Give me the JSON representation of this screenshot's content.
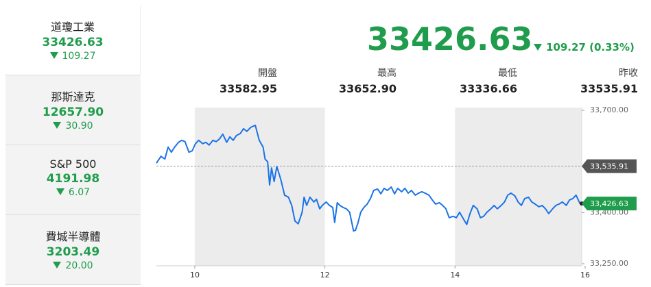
{
  "sidebar": {
    "items": [
      {
        "name": "道瓊工業",
        "value": "33426.63",
        "change": "109.27"
      },
      {
        "name": "那斯達克",
        "value": "12657.90",
        "change": "30.90"
      },
      {
        "name": "S&P 500",
        "value": "4191.98",
        "change": "6.07"
      },
      {
        "name": "費城半導體",
        "value": "3203.49",
        "change": "20.00"
      }
    ]
  },
  "quote": {
    "price": "33426.63",
    "change": "109.27",
    "change_pct": "(0.33%)",
    "stats": [
      {
        "label": "開盤",
        "value": "33582.95"
      },
      {
        "label": "最高",
        "value": "33652.90"
      },
      {
        "label": "最低",
        "value": "33336.66"
      },
      {
        "label": "昨收",
        "value": "33535.91"
      }
    ]
  },
  "chart_data": {
    "type": "line",
    "x": [
      9.41,
      9.48,
      9.54,
      9.59,
      9.64,
      9.69,
      9.75,
      9.8,
      9.85,
      9.91,
      9.96,
      10.01,
      10.06,
      10.12,
      10.17,
      10.22,
      10.28,
      10.33,
      10.38,
      10.43,
      10.49,
      10.54,
      10.59,
      10.64,
      10.7,
      10.75,
      10.8,
      10.86,
      10.93,
      10.99,
      11.05,
      11.08,
      11.12,
      11.15,
      11.18,
      11.22,
      11.26,
      11.3,
      11.33,
      11.38,
      11.44,
      11.49,
      11.54,
      11.59,
      11.65,
      11.68,
      11.72,
      11.77,
      11.83,
      11.87,
      11.92,
      11.96,
      12.02,
      12.07,
      12.12,
      12.15,
      12.19,
      12.23,
      12.28,
      12.33,
      12.38,
      12.44,
      12.47,
      12.51,
      12.55,
      12.6,
      12.65,
      12.7,
      12.75,
      12.81,
      12.86,
      12.91,
      12.96,
      13.02,
      13.07,
      13.12,
      13.18,
      13.23,
      13.28,
      13.33,
      13.39,
      13.44,
      13.49,
      13.54,
      13.6,
      13.65,
      13.7,
      13.76,
      13.81,
      13.86,
      13.91,
      13.97,
      14.02,
      14.07,
      14.13,
      14.18,
      14.23,
      14.28,
      14.34,
      14.39,
      14.44,
      14.49,
      14.55,
      14.6,
      14.65,
      14.71,
      14.76,
      14.81,
      14.86,
      14.92,
      14.97,
      15.02,
      15.07,
      15.13,
      15.18,
      15.23,
      15.29,
      15.34,
      15.39,
      15.44,
      15.5,
      15.55,
      15.6,
      15.65,
      15.71,
      15.76,
      15.81,
      15.86,
      15.92
    ],
    "series": [
      {
        "color": "#1a73e8",
        "values": [
          33545,
          33565,
          33557,
          33592,
          33577,
          33592,
          33606,
          33612,
          33608,
          33577,
          33581,
          33602,
          33612,
          33602,
          33606,
          33598,
          33612,
          33608,
          33616,
          33630,
          33606,
          33622,
          33612,
          33626,
          33632,
          33646,
          33638,
          33650,
          33656,
          33612,
          33592,
          33557,
          33549,
          33481,
          33531,
          33491,
          33535,
          33511,
          33491,
          33451,
          33445,
          33421,
          33375,
          33367,
          33401,
          33445,
          33421,
          33445,
          33431,
          33439,
          33411,
          33421,
          33431,
          33421,
          33415,
          33371,
          33429,
          33421,
          33415,
          33411,
          33401,
          33346,
          33348,
          33371,
          33401,
          33415,
          33425,
          33441,
          33465,
          33469,
          33455,
          33471,
          33465,
          33475,
          33455,
          33471,
          33461,
          33471,
          33457,
          33465,
          33451,
          33457,
          33461,
          33457,
          33451,
          33437,
          33425,
          33429,
          33421,
          33411,
          33385,
          33389,
          33385,
          33401,
          33381,
          33365,
          33397,
          33421,
          33411,
          33385,
          33389,
          33401,
          33411,
          33421,
          33411,
          33421,
          33431,
          33451,
          33457,
          33449,
          33431,
          33421,
          33441,
          33445,
          33431,
          33425,
          33417,
          33421,
          33411,
          33397,
          33411,
          33421,
          33425,
          33431,
          33421,
          33437,
          33441,
          33451,
          33426.63
        ]
      }
    ],
    "xlim": [
      9.41,
      16.0
    ],
    "xticks": [
      10,
      12,
      14,
      16
    ],
    "ylim": [
      33244,
      33708
    ],
    "yticks": [
      {
        "value": 33700,
        "label": "33,700.00"
      },
      {
        "value": 33400,
        "label": "33,400.00"
      },
      {
        "value": 33250,
        "label": "33,250.00"
      }
    ],
    "reference_line": {
      "value": 33535.91,
      "label": "33,535.91",
      "color": "#555555"
    },
    "last_label": {
      "value": 33426.63,
      "label": "33,426.63",
      "color": "#1f9d4c"
    }
  }
}
